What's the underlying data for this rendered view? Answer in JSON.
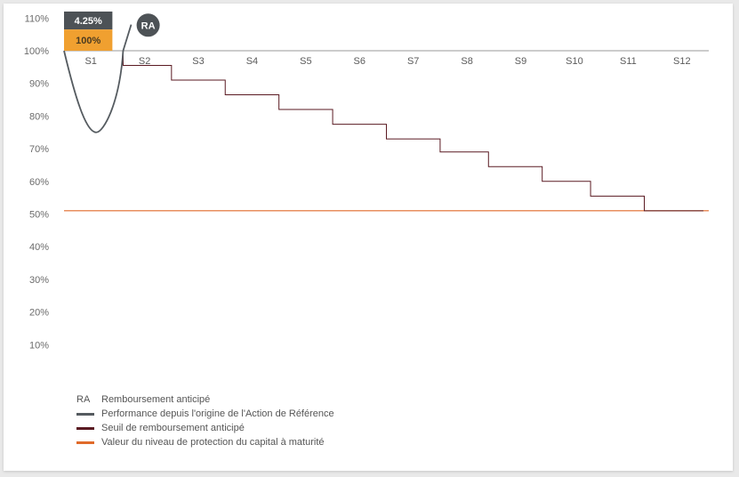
{
  "chart_data": {
    "type": "line",
    "ylim": [
      0,
      110
    ],
    "yticks": [
      "10%",
      "20%",
      "30%",
      "40%",
      "50%",
      "60%",
      "70%",
      "80%",
      "90%",
      "100%",
      "110%"
    ],
    "ytick_values": [
      10,
      20,
      30,
      40,
      50,
      60,
      70,
      80,
      90,
      100,
      110
    ],
    "reference_line": 100,
    "categories": [
      "S1",
      "S2",
      "S3",
      "S4",
      "S5",
      "S6",
      "S7",
      "S8",
      "S9",
      "S10",
      "S11",
      "S12"
    ],
    "seuil_steps": [
      {
        "from": 1.6,
        "to": 2.5,
        "value": 95.5
      },
      {
        "from": 2.5,
        "to": 3.5,
        "value": 91.0
      },
      {
        "from": 3.5,
        "to": 4.5,
        "value": 86.5
      },
      {
        "from": 4.5,
        "to": 5.5,
        "value": 82.0
      },
      {
        "from": 5.5,
        "to": 6.5,
        "value": 77.5
      },
      {
        "from": 6.5,
        "to": 7.5,
        "value": 73.0
      },
      {
        "from": 7.5,
        "to": 8.4,
        "value": 69.0
      },
      {
        "from": 8.4,
        "to": 9.4,
        "value": 64.5
      },
      {
        "from": 9.4,
        "to": 10.3,
        "value": 60.0
      },
      {
        "from": 10.3,
        "to": 11.3,
        "value": 55.5
      },
      {
        "from": 11.3,
        "to": 12.4,
        "value": 51.0
      }
    ],
    "performance_curve": [
      {
        "x": 0.5,
        "y": 100
      },
      {
        "x": 1.1,
        "y": 75
      },
      {
        "x": 1.6,
        "y": 100
      },
      {
        "x": 1.75,
        "y": 108
      }
    ],
    "protection_level": 51,
    "bars": [
      {
        "label": "4.25%",
        "color": "#4d5256"
      },
      {
        "label": "100%",
        "color": "#f0a030"
      }
    ],
    "bar_ranges": [
      [
        100,
        106.5
      ],
      [
        106.5,
        112
      ]
    ],
    "ra_marker": {
      "label": "RA",
      "x": 1.95,
      "y": 107
    }
  },
  "legend": [
    {
      "key": "RA",
      "label": "Remboursement anticipé"
    },
    {
      "key": "line",
      "color": "#555b60",
      "label": "Performance depuis l'origine de l'Action de Référence"
    },
    {
      "key": "line",
      "color": "#5a1a22",
      "label": "Seuil de remboursement anticipé"
    },
    {
      "key": "line",
      "color": "#e06a2a",
      "label": "Valeur du niveau de protection du capital à maturité"
    }
  ]
}
